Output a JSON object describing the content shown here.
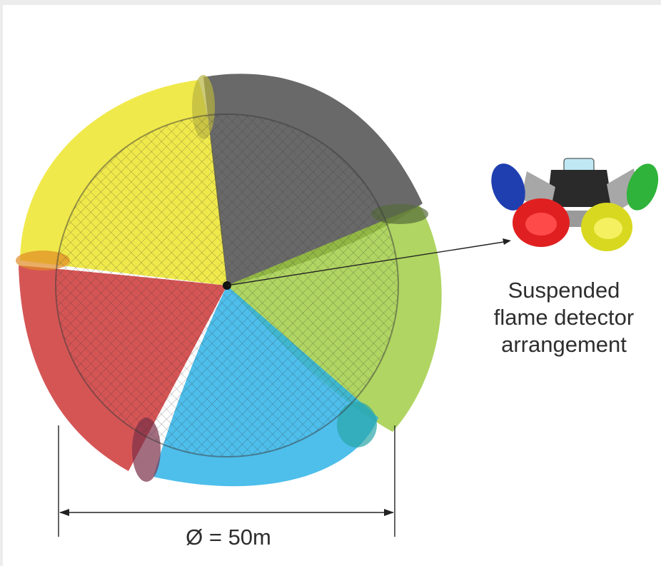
{
  "caption": {
    "lines": [
      "Suspended",
      "flame detector",
      "arrangement"
    ]
  },
  "dimension": {
    "label": "Ø = 50m"
  },
  "colors": {
    "yellow": "#ECE318",
    "grey": "#5c5c5c",
    "green": "#9ccb3b",
    "blue": "#27b0e6",
    "red": "#cc3030",
    "mesh": "#3a3a3a"
  }
}
